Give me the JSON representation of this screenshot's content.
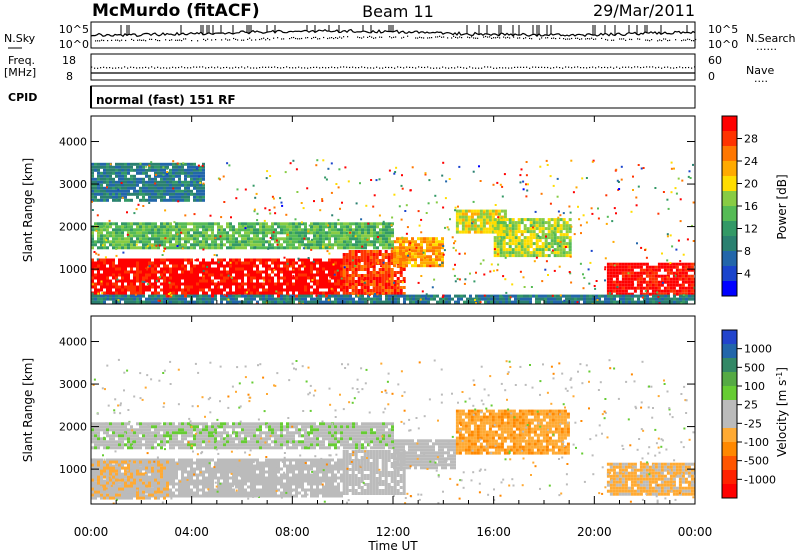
{
  "header": {
    "station": "McMurdo (fitACF)",
    "beam": "Beam 11",
    "date": "29/Mar/2011"
  },
  "noise_panel": {
    "left_label": "N.Sky",
    "left_ticks": [
      "10^5",
      "10^0"
    ],
    "right_ticks": [
      "10^5",
      "10^0"
    ],
    "right_label": "N.Search",
    "right_legend": "......"
  },
  "freq_panel": {
    "left_label_1": "Freq.",
    "left_label_2": "[MHz]",
    "left_ticks": [
      "18",
      "8"
    ],
    "right_ticks": [
      "60",
      "0"
    ],
    "right_label": "Nave",
    "right_legend": "...."
  },
  "cpid": {
    "label": "CPID",
    "mode": "normal (fast) 151 RF"
  },
  "axes": {
    "ylabel": "Slant Range [km]",
    "yticks": [
      "4000",
      "3000",
      "2000",
      "1000"
    ],
    "xticks": [
      "00:00",
      "04:00",
      "08:00",
      "12:00",
      "16:00",
      "20:00",
      "00:00"
    ],
    "xlabel": "Time UT"
  },
  "colorbars": {
    "power": {
      "label": "Power [dB]",
      "ticks": [
        "28",
        "24",
        "20",
        "16",
        "12",
        "8",
        "4"
      ],
      "colors": [
        "#ff0000",
        "#ff3300",
        "#ff7700",
        "#ffaa00",
        "#ffdd00",
        "#88cc44",
        "#55bb55",
        "#339966",
        "#2a8070",
        "#2266aa",
        "#1a44cc",
        "#0000ff"
      ]
    },
    "velocity": {
      "label": "Velocity [m s",
      "label_sup": "-1",
      "label_end": "]",
      "ticks": [
        "1000",
        "500",
        "100",
        "25",
        "-25",
        "-100",
        "-500",
        "-1000"
      ],
      "colors": [
        "#2244cc",
        "#2266aa",
        "#338866",
        "#55aa44",
        "#66cc33",
        "#bbbbbb",
        "#bbbbbb",
        "#ffaa33",
        "#ff8800",
        "#ff5500",
        "#ff2200",
        "#ff0000"
      ]
    }
  },
  "chart_data": [
    {
      "type": "heatmap",
      "title": "Power [dB]",
      "xlabel": "Time UT",
      "ylabel": "Slant Range [km]",
      "xlim_hours": [
        0,
        24
      ],
      "ylim_km": [
        180,
        4600
      ],
      "clim": [
        0,
        30
      ],
      "series": [
        {
          "t": [
            0.0,
            10.0
          ],
          "range": [
            350,
            1250
          ],
          "value": 29
        },
        {
          "t": [
            10.0,
            12.5
          ],
          "range": [
            400,
            1450
          ],
          "value": 26
        },
        {
          "t": [
            12.0,
            14.0
          ],
          "range": [
            1050,
            1750
          ],
          "value": 22
        },
        {
          "t": [
            14.5,
            16.5
          ],
          "range": [
            1900,
            2400
          ],
          "value": 18
        },
        {
          "t": [
            16.0,
            19.0
          ],
          "range": [
            1350,
            2200
          ],
          "value": 17
        },
        {
          "t": [
            20.5,
            24.0
          ],
          "range": [
            420,
            1150
          ],
          "value": 29
        },
        {
          "t": [
            0.0,
            24.0
          ],
          "range": [
            200,
            400
          ],
          "value": 8
        },
        {
          "t": [
            0.0,
            4.5
          ],
          "range": [
            2600,
            3500
          ],
          "value": 8
        },
        {
          "t": [
            0.0,
            12.0
          ],
          "range": [
            1500,
            2100
          ],
          "value": 14
        }
      ]
    },
    {
      "type": "heatmap",
      "title": "Velocity [m s-1]",
      "xlabel": "Time UT",
      "ylabel": "Slant Range [km]",
      "xlim_hours": [
        0,
        24
      ],
      "ylim_km": [
        180,
        4600
      ],
      "clim": [
        -1000,
        1000
      ],
      "series": [
        {
          "t": [
            0.0,
            10.0
          ],
          "range": [
            350,
            1250
          ],
          "value": 60
        },
        {
          "t": [
            0.0,
            3.0
          ],
          "range": [
            350,
            1200
          ],
          "value": -150
        },
        {
          "t": [
            10.0,
            12.5
          ],
          "range": [
            400,
            1450
          ],
          "value": 40
        },
        {
          "t": [
            12.0,
            14.5
          ],
          "range": [
            1000,
            1700
          ],
          "value": 80
        },
        {
          "t": [
            14.5,
            19.0
          ],
          "range": [
            1400,
            2400
          ],
          "value": -300
        },
        {
          "t": [
            20.5,
            24.0
          ],
          "range": [
            420,
            1150
          ],
          "value": -200
        },
        {
          "t": [
            0.0,
            12.0
          ],
          "range": [
            1500,
            2100
          ],
          "value": 120
        }
      ]
    }
  ]
}
